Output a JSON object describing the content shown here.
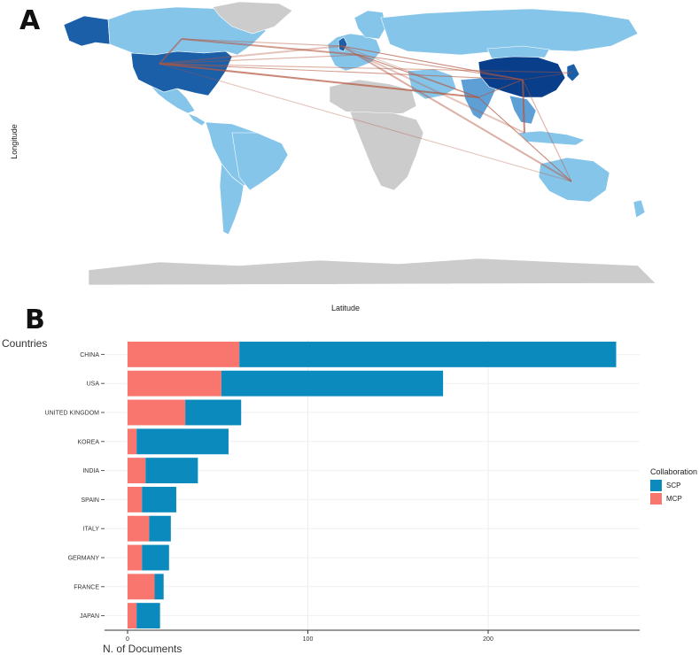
{
  "panels": {
    "a": "A",
    "b": "B"
  },
  "map": {
    "xlabel": "Latitude",
    "ylabel": "Longitude",
    "colors": {
      "ocean": "#ffffff",
      "no_data": "#cccccc",
      "low": "#86c5ea",
      "mid": "#5e9fd6",
      "high": "#1a5fa8",
      "top": "#083e8a",
      "link": "#b5573f"
    }
  },
  "chart_data": {
    "type": "bar",
    "orientation": "horizontal",
    "stacked": true,
    "categories": [
      "CHINA",
      "USA",
      "UNITED KINGDOM",
      "KOREA",
      "INDIA",
      "SPAIN",
      "ITALY",
      "GERMANY",
      "FRANCE",
      "JAPAN"
    ],
    "series": [
      {
        "name": "MCP",
        "color": "#f8766d",
        "values": [
          62,
          52,
          32,
          5,
          10,
          8,
          12,
          8,
          15,
          5
        ]
      },
      {
        "name": "SCP",
        "color": "#0a8abd",
        "values": [
          209,
          123,
          31,
          51,
          29,
          19,
          12,
          15,
          5,
          13
        ]
      }
    ],
    "xlabel": "N. of Documents",
    "ylabel": "Countries",
    "xlim": [
      0,
      285
    ],
    "xticks": [
      0,
      100,
      200
    ],
    "legend": {
      "title": "Collaboration",
      "position": "right",
      "order": [
        "SCP",
        "MCP"
      ]
    }
  }
}
